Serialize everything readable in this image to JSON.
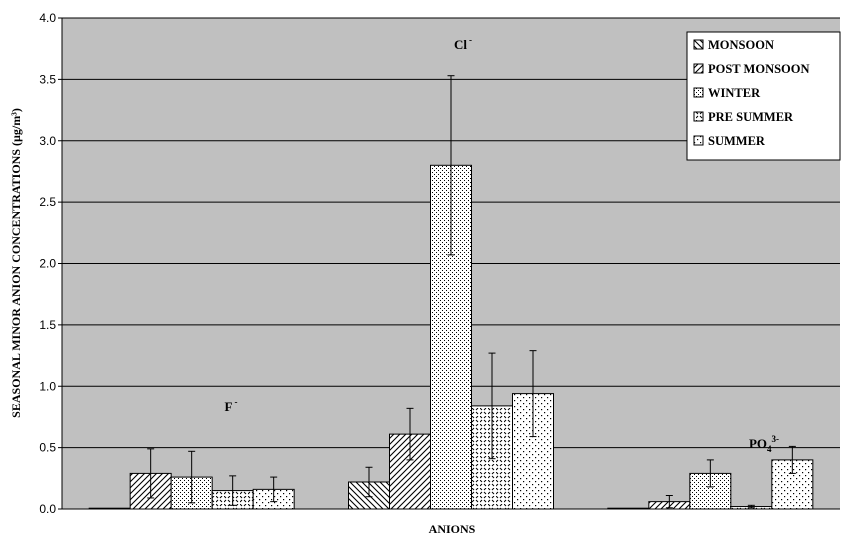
{
  "chart_data": {
    "type": "bar",
    "title": "",
    "xlabel": "ANIONS",
    "ylabel": "SEASONAL MINOR ANION CONCENTRATIONS (µg/m³)",
    "ylim": [
      0,
      4.0
    ],
    "yticks": [
      "0.0",
      "0.5",
      "1.0",
      "1.5",
      "2.0",
      "2.5",
      "3.0",
      "3.5",
      "4.0"
    ],
    "grid": true,
    "legend_position": "top-right",
    "categories": [
      "F⁻",
      "Cl⁻",
      "PO₄³⁻"
    ],
    "annotations": [
      {
        "label": "F",
        "sup": "-",
        "sub": ""
      },
      {
        "label": "Cl",
        "sup": "-",
        "sub": ""
      },
      {
        "label": "PO",
        "sub": "4",
        "sup": "3-"
      }
    ],
    "series": [
      {
        "name": "MONSOON",
        "pattern": "diag-left",
        "values": [
          0.0,
          0.22,
          0.0
        ],
        "errors": [
          0.0,
          0.12,
          0.0
        ]
      },
      {
        "name": "POST MONSOON",
        "pattern": "diag-right",
        "values": [
          0.29,
          0.61,
          0.06
        ],
        "errors": [
          0.2,
          0.21,
          0.05
        ]
      },
      {
        "name": "WINTER",
        "pattern": "fine-dots",
        "values": [
          0.26,
          2.8,
          0.29
        ],
        "errors": [
          0.21,
          0.73,
          0.11
        ]
      },
      {
        "name": "PRE SUMMER",
        "pattern": "checker",
        "values": [
          0.15,
          0.84,
          0.02
        ],
        "errors": [
          0.12,
          0.43,
          0.01
        ]
      },
      {
        "name": "SUMMER",
        "pattern": "sparse-dots",
        "values": [
          0.16,
          0.94,
          0.4
        ],
        "errors": [
          0.1,
          0.35,
          0.11
        ]
      }
    ],
    "colors": {
      "plot_background": "#c0c0c0",
      "bar_fill": "#ffffff",
      "stroke": "#000000",
      "gridline": "#000000"
    }
  }
}
